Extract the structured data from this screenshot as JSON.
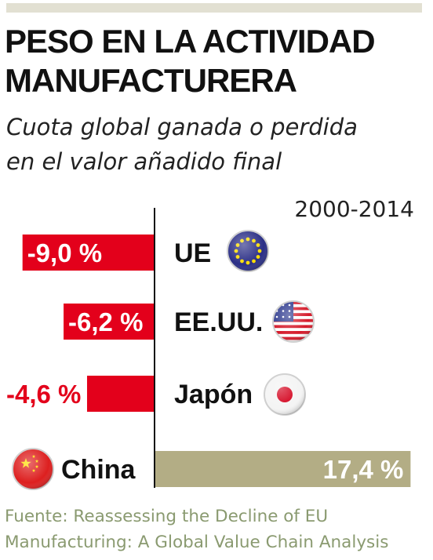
{
  "title_line1": "PESO EN LA ACTIVIDAD",
  "title_line2": "MANUFACTURERA",
  "subtitle_line1": "Cuota global ganada o perdida",
  "subtitle_line2": "en el valor añadido final",
  "period": "2000-2014",
  "source_line1": "Fuente: Reassessing the Decline of EU",
  "source_line2": "Manufacturing: A Global Value Chain Analysis",
  "chart_data": {
    "type": "bar",
    "orientation": "horizontal",
    "categories": [
      "UE",
      "EE.UU.",
      "Japón",
      "China"
    ],
    "values": [
      -9.0,
      -6.2,
      -4.6,
      17.4
    ],
    "value_labels": [
      "-9,0 %",
      "-6,2 %",
      "-4,6 %",
      "17,4 %"
    ],
    "unit": "%",
    "flags": [
      "eu-flag-icon",
      "usa-flag-icon",
      "japan-flag-icon",
      "china-flag-icon"
    ],
    "colors": {
      "negative": "#e3001b",
      "positive": "#b3ad85"
    },
    "xlim": [
      -9.0,
      17.4
    ],
    "grid": false
  }
}
